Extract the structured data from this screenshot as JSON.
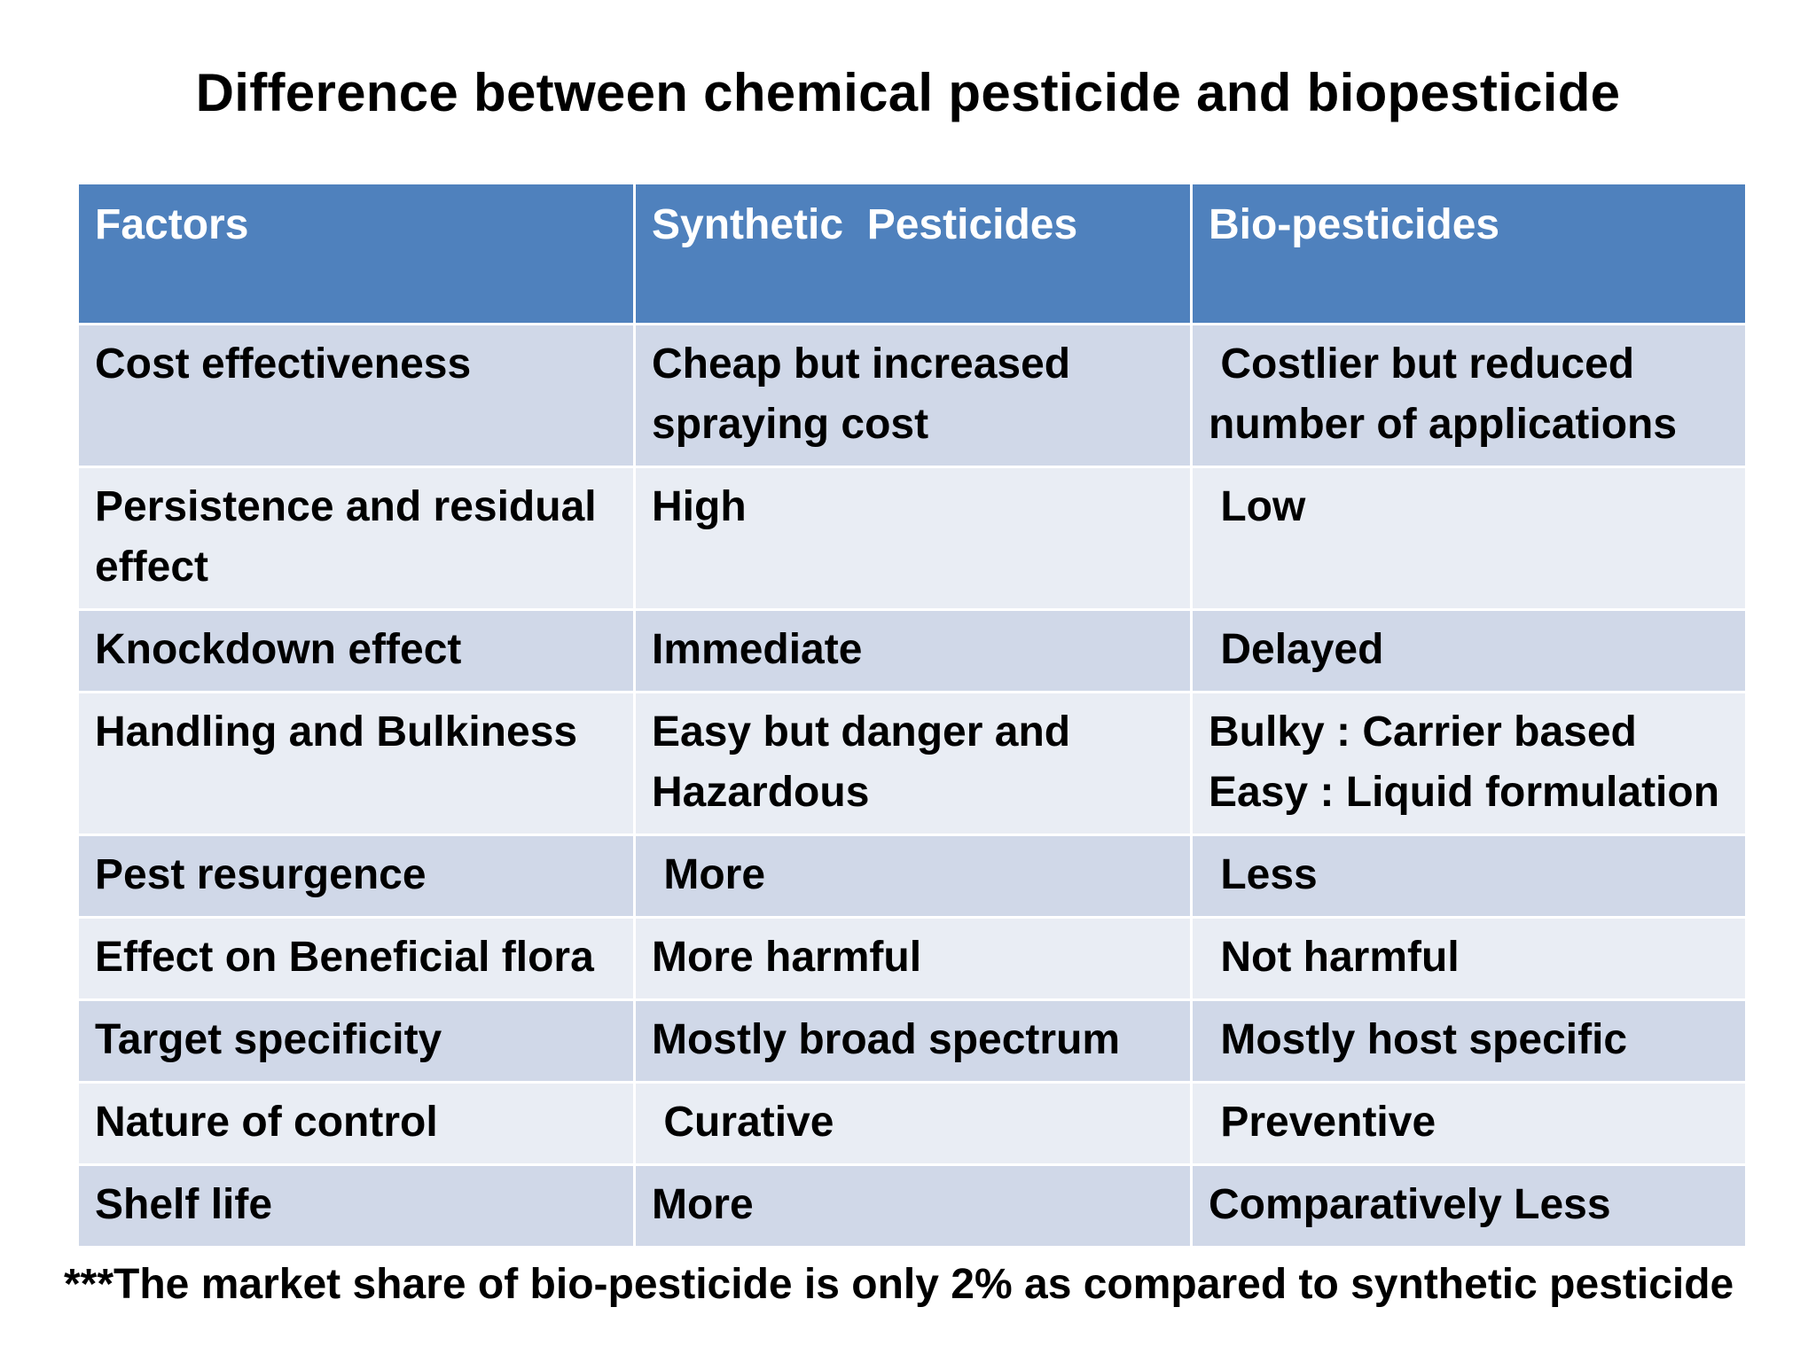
{
  "title": "Difference between chemical pesticide and biopesticide",
  "table": {
    "headers": [
      "Factors",
      "Synthetic  Pesticides",
      "Bio-pesticides"
    ],
    "rows": [
      [
        "Cost effectiveness",
        "Cheap but increased spraying cost",
        " Costlier but reduced number of applications"
      ],
      [
        "Persistence and residual effect",
        "High",
        " Low"
      ],
      [
        "Knockdown effect",
        "Immediate",
        " Delayed"
      ],
      [
        "Handling and Bulkiness",
        "Easy but danger and Hazardous",
        "Bulky : Carrier based\nEasy : Liquid formulation"
      ],
      [
        "Pest resurgence",
        " More",
        " Less"
      ],
      [
        "Effect on Beneficial flora",
        "More harmful",
        " Not harmful"
      ],
      [
        "Target specificity",
        "Mostly broad spectrum",
        " Mostly host specific"
      ],
      [
        "Nature of control",
        " Curative",
        " Preventive"
      ],
      [
        "Shelf life",
        "More",
        "Comparatively Less"
      ]
    ]
  },
  "footnote": "***The market share of bio-pesticide is only 2% as compared to synthetic pesticide",
  "colors": {
    "header_bg": "#4f81bd",
    "row_odd_bg": "#d0d8e8",
    "row_even_bg": "#e9edf4"
  }
}
